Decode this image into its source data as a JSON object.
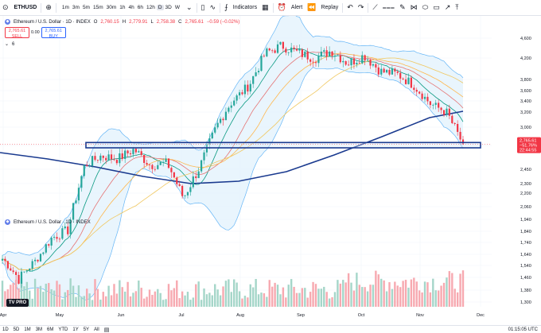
{
  "toolbar": {
    "symbol": "ETHUSD",
    "intervals": [
      "1m",
      "3m",
      "5m",
      "15m",
      "30m",
      "1h",
      "4h",
      "6h",
      "12h",
      "D",
      "3D",
      "W"
    ],
    "active_interval": "D",
    "indicators_label": "Indicators",
    "alert_label": "Alert",
    "replay_label": "Replay"
  },
  "legend": {
    "title": "Ethereum / U.S. Dollar · 1D · INDEX",
    "o_label": "O",
    "o": "2,760.15",
    "h_label": "H",
    "h": "2,779.91",
    "l_label": "L",
    "l": "2,758.38",
    "c_label": "C",
    "c": "2,765.61",
    "change": "−0.59 (−0.02%)"
  },
  "trade": {
    "sell_price": "2,765.61",
    "sell_label": "SELL",
    "spread": "0.00",
    "buy_price": "2,765.61",
    "buy_label": "BUY"
  },
  "indicator_count": "6",
  "price_tag": {
    "price": "2,765.61",
    "change": "−51.76%",
    "countdown": "22:44:55"
  },
  "bottom": {
    "ranges": [
      "1D",
      "5D",
      "1M",
      "3M",
      "6M",
      "YTD",
      "1Y",
      "5Y",
      "All"
    ],
    "clock": "01:15:05 UTC"
  },
  "logo_text": "TV PRO",
  "colors": {
    "up": "#26a69a",
    "down": "#f23645",
    "ma_long": "#1a3a8f",
    "band_fill": "#e3f2fd",
    "band_line": "#64b5f6",
    "box": "#1a3a8f"
  },
  "chart_data": {
    "type": "candlestick",
    "price_ticks": [
      4600,
      4200,
      3800,
      3600,
      3400,
      3200,
      3000,
      2750,
      2450,
      2300,
      2200,
      2060,
      1940,
      1840,
      1740,
      1640,
      1540,
      1460,
      1380,
      1300
    ],
    "x_labels": [
      "Apr",
      "May",
      "Jun",
      "Jul",
      "Aug",
      "Sep",
      "Oct",
      "Nov",
      "Dec"
    ],
    "ylim": [
      1300,
      4800
    ],
    "close_approx": [
      1600,
      1450,
      1580,
      1780,
      1850,
      2500,
      2620,
      2580,
      2700,
      2500,
      2530,
      2150,
      2480,
      3000,
      3400,
      3700,
      4300,
      4450,
      4300,
      4200,
      4350,
      4100,
      4250,
      3950,
      3900,
      3700,
      3350,
      3200,
      2765.61
    ],
    "horizontal_zone": [
      2720,
      2790
    ],
    "volume_scale_note": ""
  }
}
